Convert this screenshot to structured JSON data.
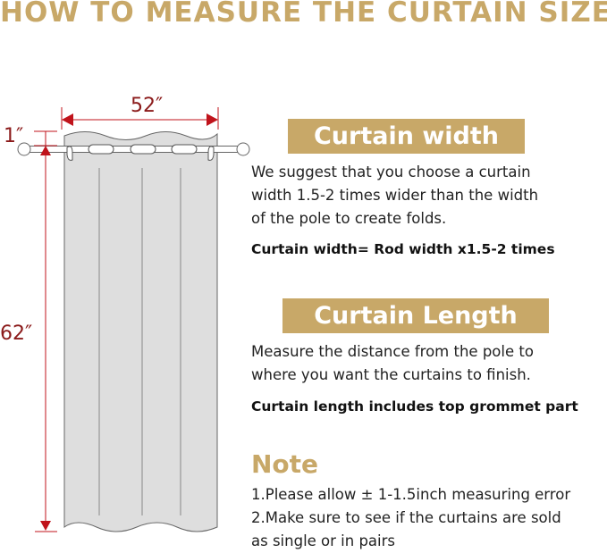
{
  "title": "HOW TO MEASURE THE CURTAIN SIZE",
  "colors": {
    "accent": "#c8a868",
    "dimension": "#c0131b",
    "dimension_text": "#8b1a1a",
    "curtain": "#dedede"
  },
  "diagram": {
    "width_label": "52″",
    "header_label": "1″",
    "length_label": "62″"
  },
  "width_section": {
    "heading": "Curtain width",
    "lines": [
      "We suggest that you choose a curtain",
      "width 1.5-2 times wider than the width",
      "of the pole to create folds."
    ],
    "formula": "Curtain width= Rod width x1.5-2 times"
  },
  "length_section": {
    "heading": "Curtain Length",
    "lines": [
      "Measure the distance from the pole to",
      "where you want the curtains to finish."
    ],
    "note": "Curtain length includes top grommet part"
  },
  "note_section": {
    "heading": "Note",
    "lines": [
      "1.Please allow ± 1-1.5inch measuring error",
      "2.Make sure to see if the curtains are sold",
      "as single or in pairs"
    ]
  }
}
